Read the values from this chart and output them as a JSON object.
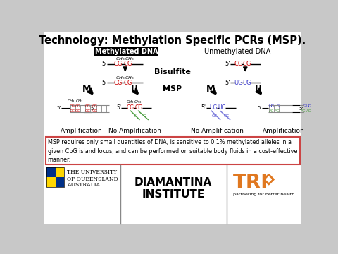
{
  "title": "Technology: Methylation Specific PCRs (MSP).",
  "bg_color": "#c8c8c8",
  "content_bg": "#ffffff",
  "title_color": "#000000",
  "title_fontsize": 10.5,
  "methylated_label": "Methylated DNA",
  "unmethylated_label": "Unmethylated DNA",
  "bisulfite_label": "Bisulfite",
  "msp_label": "MSP",
  "amp_labels": [
    "Amplification",
    "No Amplification",
    "No Amplification",
    "Amplification"
  ],
  "m_label": "M",
  "u_label": "U",
  "info_text": "MSP requires only small quantities of DNA, is sensitive to 0.1% methylated alleles in a\ngiven CpG island locus, and can be performed on suitable body fluids in a cost-effective\nmanner.",
  "uq_text": "THE UNIVERSITY\nOF QUEENSLAND\nAUSTRALIA",
  "diamantina_text": "DIAMANTINA\nINSTITUTE",
  "trio_text": "TRI",
  "trio_sub": "partnering for better health",
  "red_color": "#cc0000",
  "green_color": "#4a9c3f",
  "blue_color": "#4040cc",
  "orange_color": "#e07820",
  "black_color": "#000000",
  "white_color": "#ffffff",
  "box_fill": "#000000",
  "info_border": "#cc4444",
  "info_bg": "#ffffff",
  "gray_line": "#888888",
  "uq_blue": "#003087",
  "uq_gold": "#FFD700"
}
